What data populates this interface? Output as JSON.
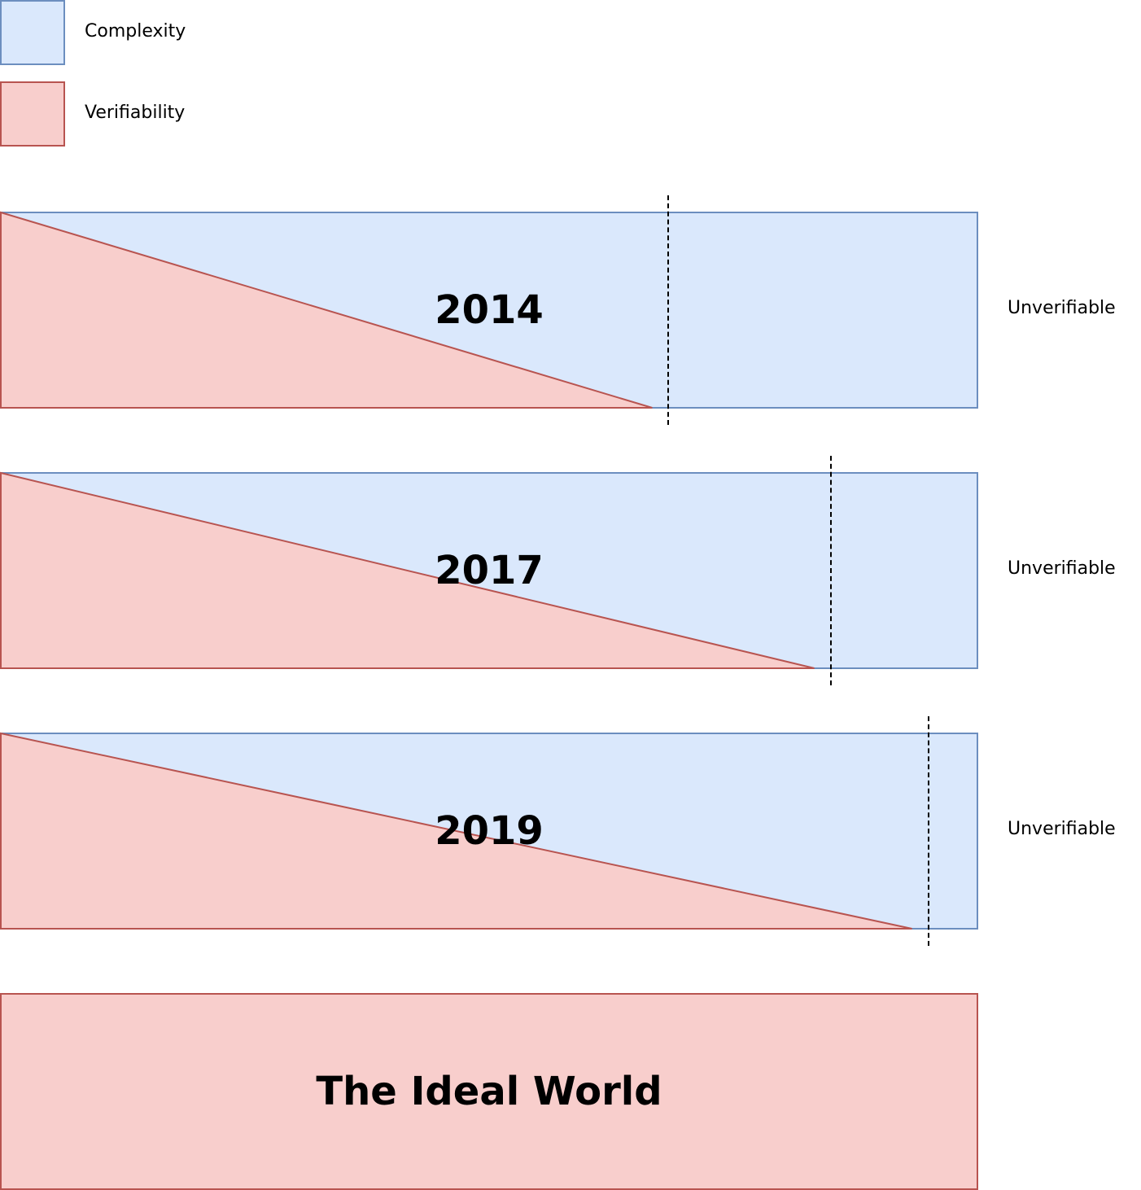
{
  "legend": {
    "items": [
      {
        "label": "Complexity",
        "fill": "#dae8fc",
        "stroke": "#6c8ebf"
      },
      {
        "label": "Verifiability",
        "fill": "#f8cecc",
        "stroke": "#b85450"
      }
    ]
  },
  "bands": [
    {
      "year": "2014",
      "verifiable_fraction": 0.667,
      "label": "Unverifiable"
    },
    {
      "year": "2017",
      "verifiable_fraction": 0.833,
      "label": "Unverifiable"
    },
    {
      "year": "2019",
      "verifiable_fraction": 0.933,
      "label": "Unverifiable"
    }
  ],
  "ideal": {
    "title": "The Ideal World"
  },
  "colors": {
    "complexity_fill": "#dae8fc",
    "complexity_stroke": "#6c8ebf",
    "verifiability_fill": "#f8cecc",
    "verifiability_stroke": "#b85450"
  }
}
